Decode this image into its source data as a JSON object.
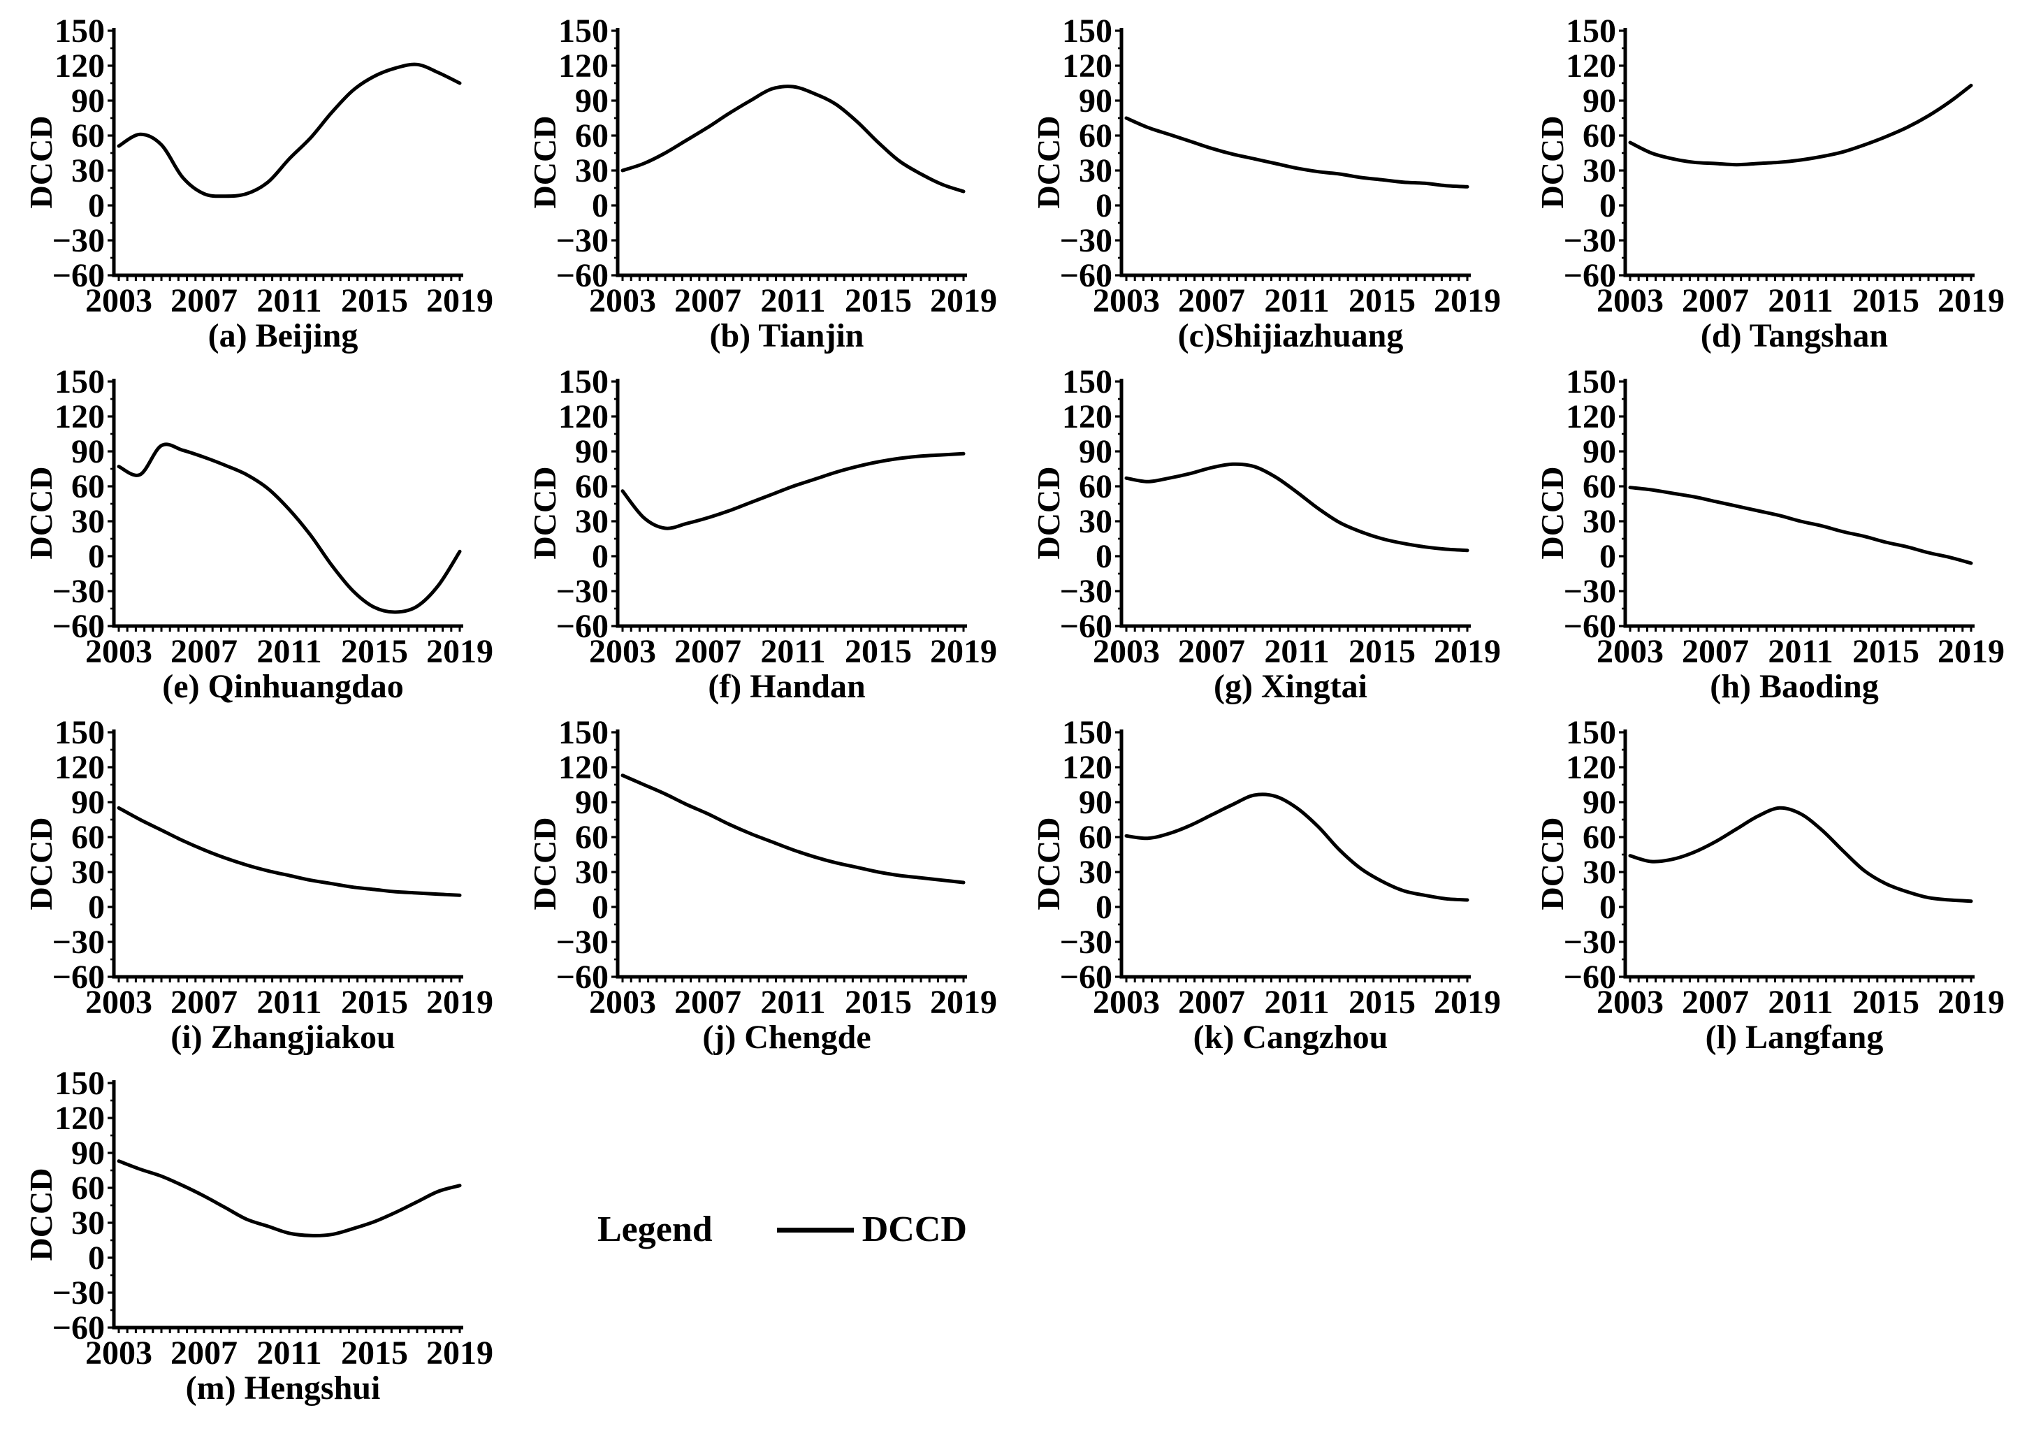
{
  "figure": {
    "background_color": "#ffffff",
    "line_color": "#000000",
    "text_color": "#000000"
  },
  "legend": {
    "title": "Legend",
    "series_label": "DCCD"
  },
  "chart_data": {
    "type": "line",
    "title": "",
    "xlabel": "",
    "ylabel": "DCCD",
    "x": [
      2003,
      2004,
      2005,
      2006,
      2007,
      2008,
      2009,
      2010,
      2011,
      2012,
      2013,
      2014,
      2015,
      2016,
      2017,
      2018,
      2019
    ],
    "xticks": [
      2003,
      2007,
      2011,
      2015,
      2019
    ],
    "xlim": [
      2003,
      2019
    ],
    "ylim": [
      -60,
      150
    ],
    "yticks": [
      150,
      120,
      90,
      60,
      30,
      0,
      -30,
      -60
    ],
    "grid": false,
    "legend_position": "bottom",
    "line_color": "#000000",
    "series": [
      {
        "name": "(a) Beijing",
        "city": "Beijing",
        "values": [
          51,
          61,
          52,
          24,
          10,
          8,
          10,
          20,
          40,
          58,
          80,
          99,
          111,
          118,
          121,
          114,
          105
        ]
      },
      {
        "name": "(b) Tianjin",
        "city": "Tianjin",
        "values": [
          30,
          36,
          45,
          56,
          67,
          79,
          90,
          100,
          102,
          96,
          87,
          72,
          54,
          38,
          27,
          18,
          12
        ]
      },
      {
        "name": "(c)Shijiazhuang",
        "city": "Shijiazhuang",
        "values": [
          75,
          67,
          61,
          55,
          49,
          44,
          40,
          36,
          32,
          29,
          27,
          24,
          22,
          20,
          19,
          17,
          16
        ]
      },
      {
        "name": "(d) Tangshan",
        "city": "Tangshan",
        "values": [
          54,
          45,
          40,
          37,
          36,
          35,
          36,
          37,
          39,
          42,
          46,
          52,
          59,
          67,
          77,
          89,
          103
        ]
      },
      {
        "name": "(e) Qinhuangdao",
        "city": "Qinhuangdao",
        "values": [
          77,
          70,
          95,
          91,
          85,
          78,
          70,
          58,
          40,
          18,
          -8,
          -30,
          -44,
          -48,
          -43,
          -25,
          4
        ]
      },
      {
        "name": "(f) Handan",
        "city": "Handan",
        "values": [
          56,
          33,
          24,
          28,
          33,
          39,
          46,
          53,
          60,
          66,
          72,
          77,
          81,
          84,
          86,
          87,
          88
        ]
      },
      {
        "name": "(g) Xingtai",
        "city": "Xingtai",
        "values": [
          67,
          64,
          67,
          71,
          76,
          79,
          77,
          68,
          55,
          41,
          29,
          21,
          15,
          11,
          8,
          6,
          5
        ]
      },
      {
        "name": "(h) Baoding",
        "city": "Baoding",
        "values": [
          59,
          57,
          54,
          51,
          47,
          43,
          39,
          35,
          30,
          26,
          21,
          17,
          12,
          8,
          3,
          -1,
          -6
        ]
      },
      {
        "name": "(i) Zhangjiakou",
        "city": "Zhangjiakou",
        "values": [
          85,
          75,
          66,
          57,
          49,
          42,
          36,
          31,
          27,
          23,
          20,
          17,
          15,
          13,
          12,
          11,
          10
        ]
      },
      {
        "name": "(j) Chengde",
        "city": "Chengde",
        "values": [
          113,
          105,
          97,
          88,
          80,
          71,
          63,
          56,
          49,
          43,
          38,
          34,
          30,
          27,
          25,
          23,
          21
        ]
      },
      {
        "name": "(k) Cangzhou",
        "city": "Cangzhou",
        "values": [
          61,
          59,
          63,
          70,
          79,
          88,
          96,
          95,
          85,
          69,
          49,
          33,
          22,
          14,
          10,
          7,
          6
        ]
      },
      {
        "name": "(l) Langfang",
        "city": "Langfang",
        "values": [
          44,
          39,
          41,
          47,
          56,
          67,
          78,
          85,
          80,
          66,
          48,
          31,
          20,
          13,
          8,
          6,
          5
        ]
      },
      {
        "name": "(m) Hengshui",
        "city": "Hengshui",
        "values": [
          83,
          76,
          70,
          62,
          53,
          43,
          33,
          27,
          21,
          19,
          20,
          25,
          31,
          39,
          48,
          57,
          62
        ]
      }
    ]
  }
}
